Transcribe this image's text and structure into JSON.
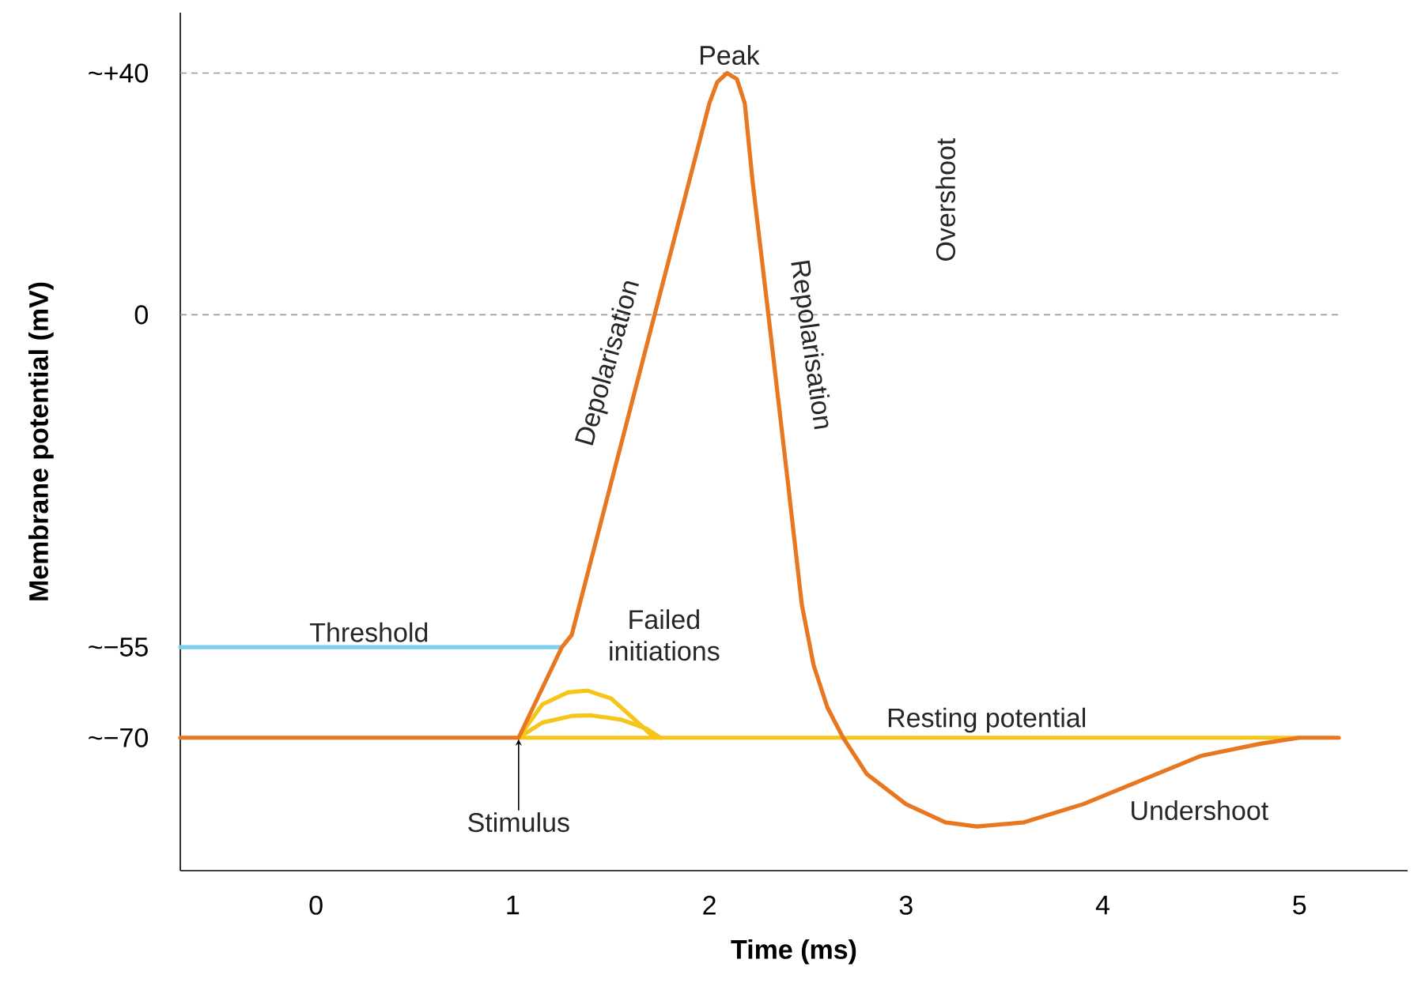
{
  "chart_data": {
    "type": "line",
    "xlabel": "Time (ms)",
    "ylabel": "Membrane potential (mV)",
    "xlim": [
      -0.69,
      5.55
    ],
    "ylim": [
      -92,
      50
    ],
    "xticks": [
      0,
      1,
      2,
      3,
      4,
      5
    ],
    "yticks": [
      {
        "value": 40,
        "label": "~+40"
      },
      {
        "value": 0,
        "label": "0"
      },
      {
        "value": -55,
        "label": "~−55"
      },
      {
        "value": -70,
        "label": "~−70"
      }
    ],
    "marker": "none",
    "line_style": "solid",
    "series": [
      {
        "color": "#7fcdee",
        "x": [
          -0.69,
          1.25
        ],
        "values": [
          -55,
          -55
        ]
      },
      {
        "color": "#f5c518",
        "x": [
          1.03,
          5.0
        ],
        "values": [
          -70,
          -70
        ]
      },
      {
        "color": "#f5c518",
        "x": [
          1.03,
          1.15,
          1.28,
          1.38,
          1.5,
          1.62,
          1.72
        ],
        "values": [
          -70,
          -64.5,
          -62.5,
          -62.2,
          -63.5,
          -67,
          -70
        ]
      },
      {
        "color": "#f5c518",
        "x": [
          1.03,
          1.15,
          1.3,
          1.4,
          1.55,
          1.68,
          1.75
        ],
        "values": [
          -70,
          -67.5,
          -66.4,
          -66.3,
          -67,
          -68.5,
          -70
        ]
      },
      {
        "color": "#e87722",
        "x": [
          -0.69,
          1.03,
          1.25,
          1.3,
          2.0,
          2.04,
          2.09,
          2.14,
          2.18,
          2.22,
          2.3,
          2.4,
          2.47,
          2.53,
          2.6,
          2.68,
          2.8,
          3.0,
          3.2,
          3.36,
          3.6,
          3.9,
          4.2,
          4.5,
          4.8,
          5.0,
          5.2
        ],
        "values": [
          -70,
          -70,
          -55,
          -53,
          35,
          38.5,
          40,
          39,
          35,
          22,
          0,
          -28,
          -48,
          -58,
          -65,
          -70,
          -76,
          -81,
          -84,
          -84.7,
          -84,
          -81,
          -77,
          -73,
          -71,
          -70,
          -70
        ]
      }
    ],
    "ref_lines": [
      {
        "axis": "y",
        "value": 40,
        "color": "#999999",
        "line_style": "dashed"
      },
      {
        "axis": "y",
        "value": 0,
        "color": "#999999",
        "line_style": "dashed"
      }
    ],
    "annotations": [
      {
        "text": "Peak",
        "x": 2.1,
        "y": 40
      },
      "Depolarisation",
      "Repolarisation",
      "Overshoot",
      {
        "text": "Threshold",
        "x": 0.27,
        "y": -55
      },
      "Failed initiations",
      {
        "text": "Resting potential",
        "x": 3.41,
        "y": -70
      },
      "Undershoot",
      {
        "text": "Stimulus",
        "x": 1.03,
        "y": -70
      }
    ]
  }
}
